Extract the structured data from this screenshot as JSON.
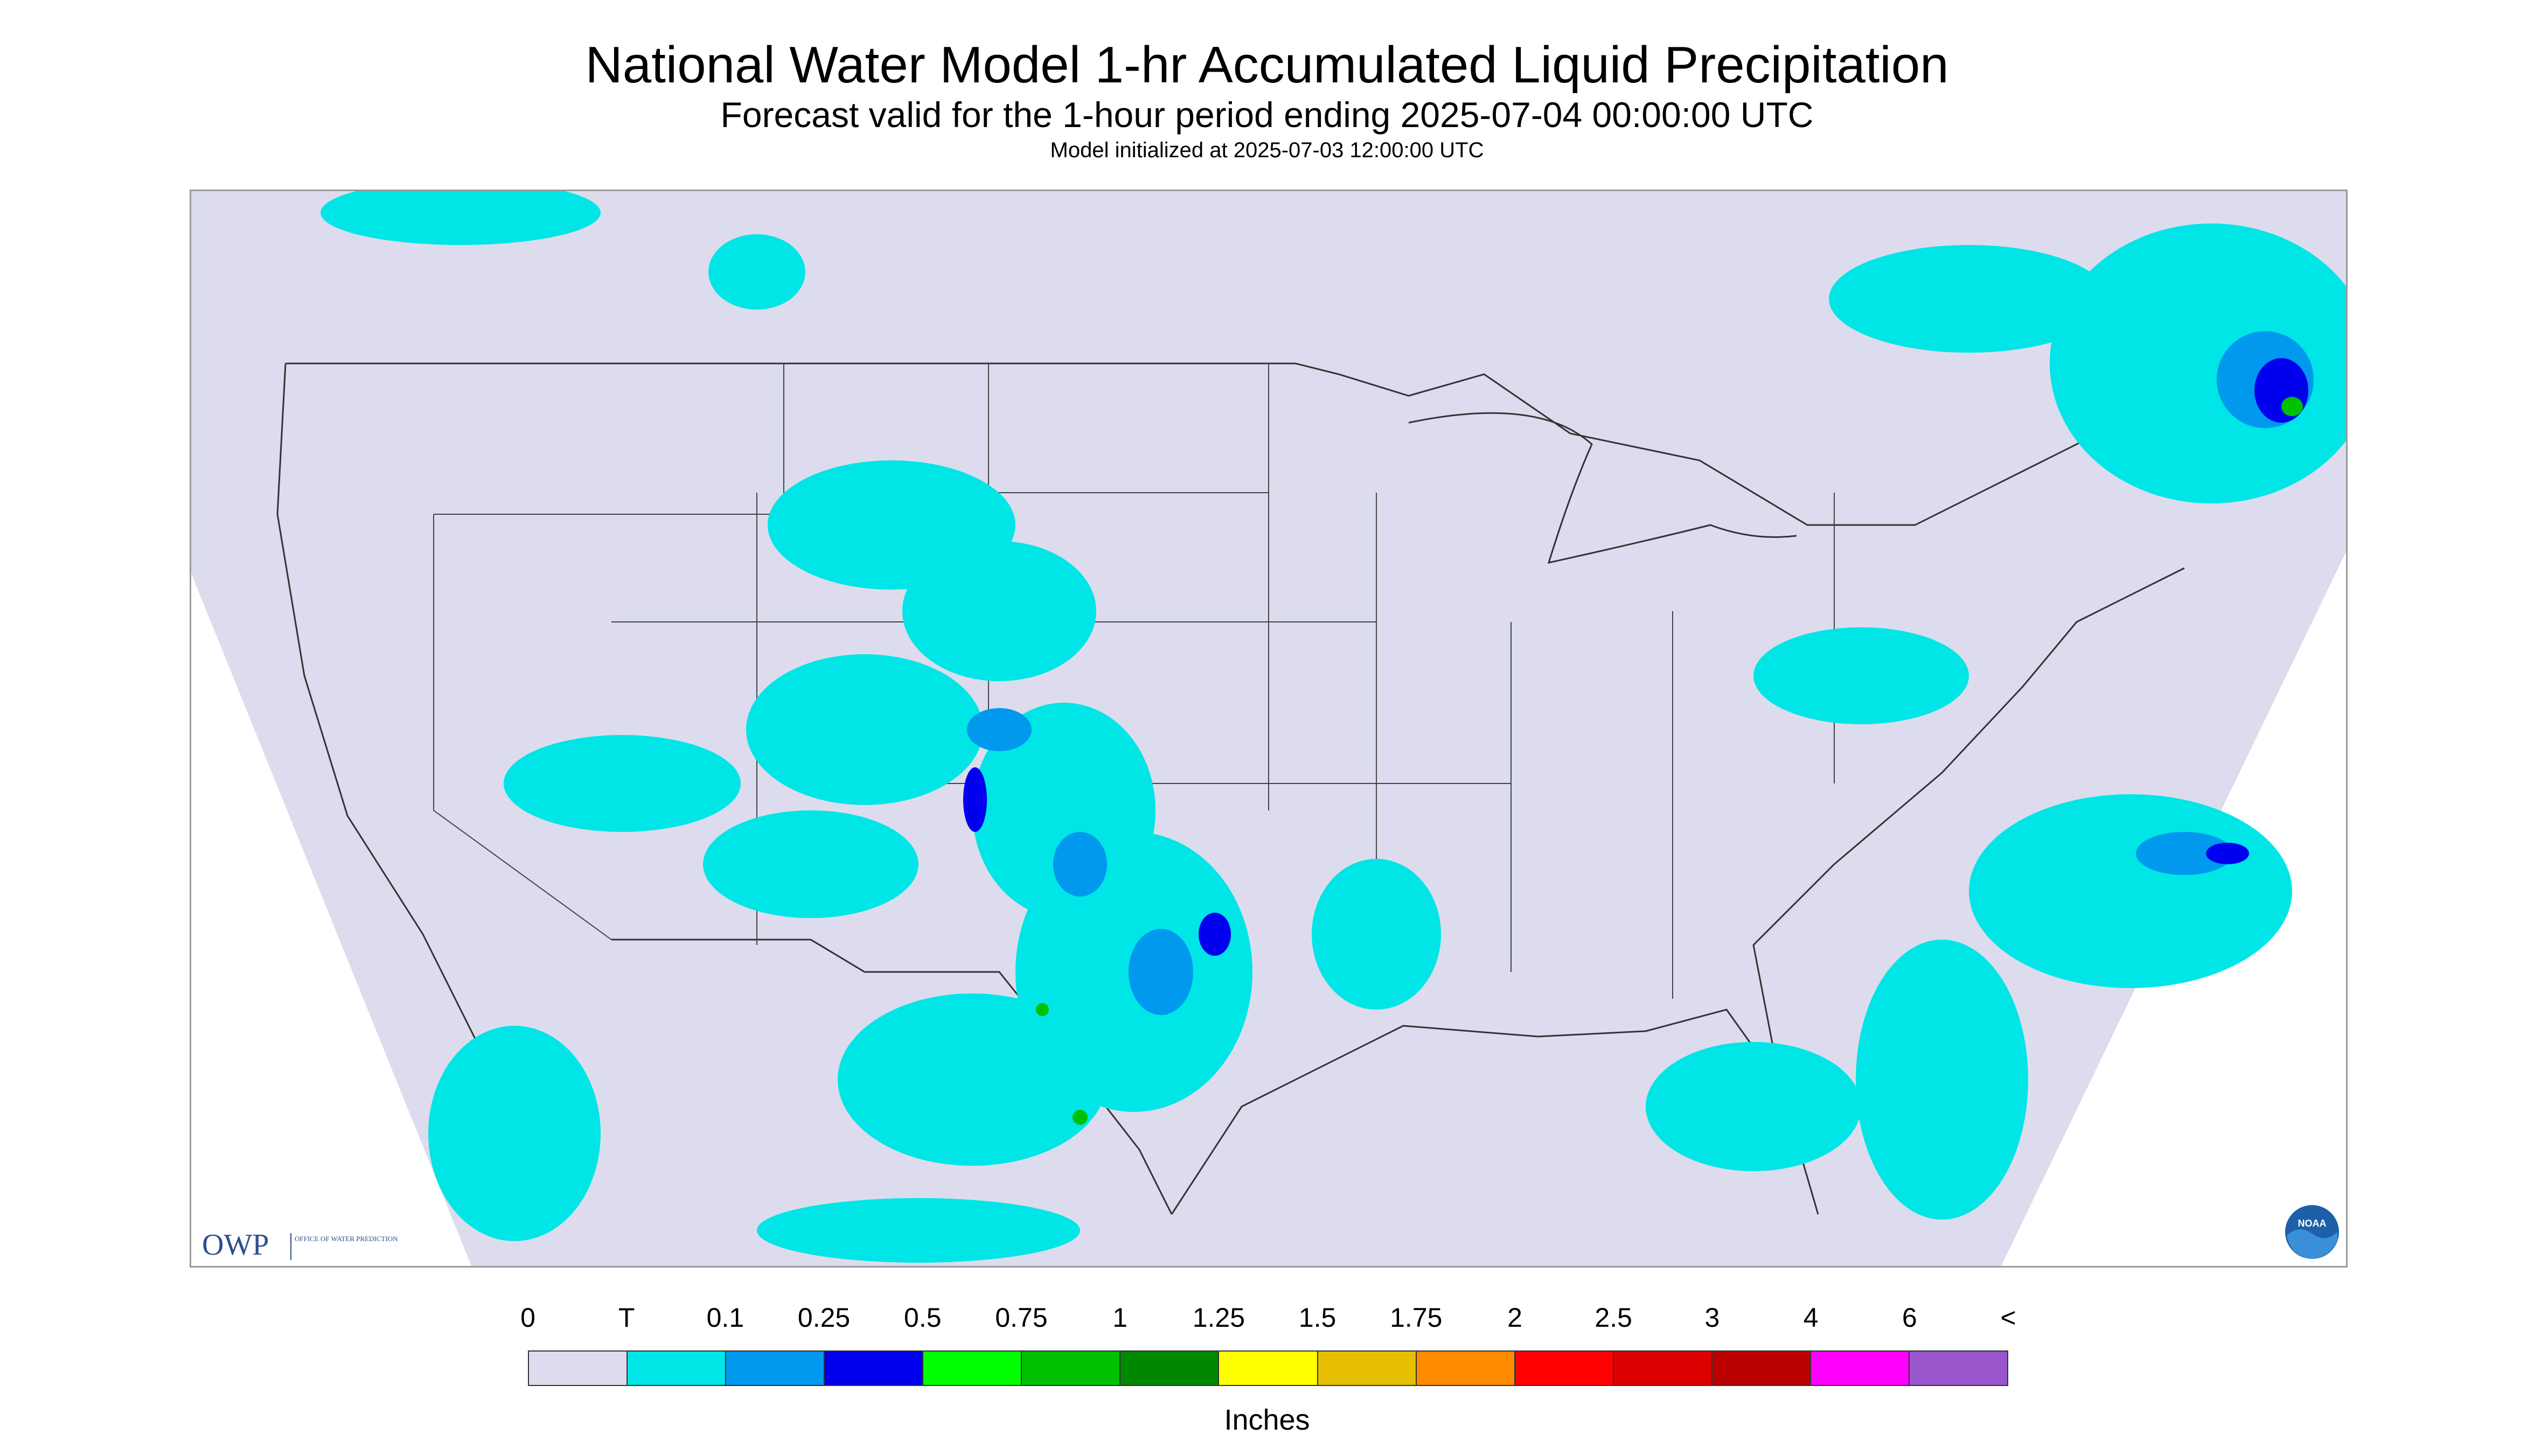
{
  "header": {
    "title": "National Water Model 1-hr Accumulated Liquid Precipitation",
    "subtitle": "Forecast valid for the 1-hour period ending 2025-07-04 00:00:00 UTC",
    "init_line": "Model initialized at 2025-07-03 12:00:00 UTC"
  },
  "map": {
    "projection": "Lambert conformal (CONUS domain)",
    "background_color": "#dcdcee",
    "outside_domain_color": "#ffffff",
    "boundary_line_color": "#333333"
  },
  "logos": {
    "owp": {
      "mark": "OWP",
      "subtext": "OFFICE OF WATER PREDICTION"
    },
    "noaa": {
      "text": "NOAA"
    }
  },
  "legend": {
    "tick_labels": [
      "0",
      "T",
      "0.1",
      "0.25",
      "0.5",
      "0.75",
      "1",
      "1.25",
      "1.5",
      "1.75",
      "2",
      "2.5",
      "3",
      "4",
      "6",
      "<"
    ],
    "colors": [
      "#dcdcee",
      "#00e5e5",
      "#0099ee",
      "#0000ee",
      "#00ff00",
      "#00c000",
      "#008800",
      "#ffff00",
      "#e6c000",
      "#ff8c00",
      "#ff0000",
      "#dd0000",
      "#bb0000",
      "#ff00ff",
      "#9955cc"
    ],
    "units": "Inches"
  }
}
